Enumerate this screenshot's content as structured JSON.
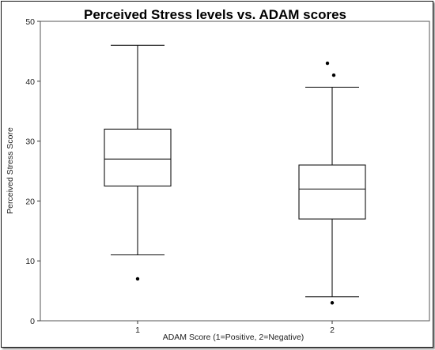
{
  "chart_data": {
    "type": "box",
    "title": "Perceived Stress levels vs. ADAM scores",
    "xlabel": "ADAM Score (1=Positive, 2=Negative)",
    "ylabel": "Perceived Stress Score",
    "ylim": [
      0,
      50
    ],
    "yticks": [
      0,
      10,
      20,
      30,
      40,
      50
    ],
    "grid": false,
    "categories": [
      "1",
      "2"
    ],
    "boxes": [
      {
        "category": "1",
        "whisker_low": 11,
        "q1": 22.5,
        "median": 27,
        "q3": 32,
        "whisker_high": 46,
        "outliers": [
          7
        ]
      },
      {
        "category": "2",
        "whisker_low": 4,
        "q1": 17,
        "median": 22,
        "q3": 26,
        "whisker_high": 39,
        "outliers": [
          3,
          41,
          43
        ]
      }
    ]
  }
}
